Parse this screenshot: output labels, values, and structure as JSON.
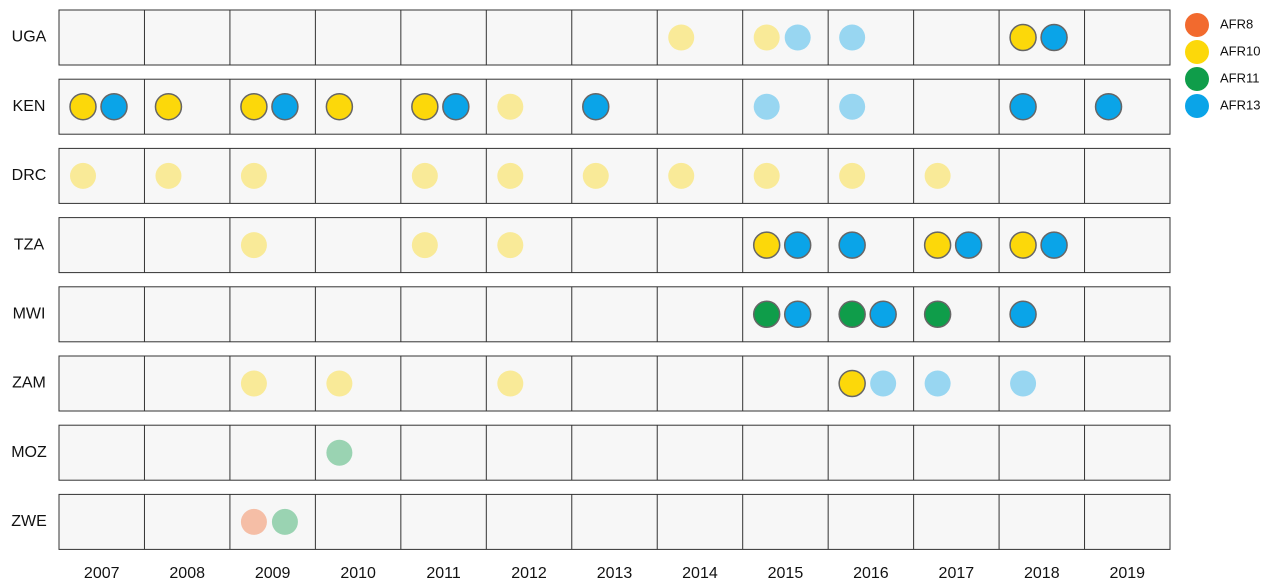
{
  "chart_data": {
    "type": "dot-matrix",
    "xticks": [
      2007,
      2008,
      2009,
      2010,
      2011,
      2012,
      2013,
      2014,
      2015,
      2016,
      2017,
      2018,
      2019
    ],
    "series": [
      {
        "name": "AFR8",
        "color": "#f26a2e"
      },
      {
        "name": "AFR10",
        "color": "#fcd80a"
      },
      {
        "name": "AFR11",
        "color": "#0f9d4a"
      },
      {
        "name": "AFR13",
        "color": "#0aa4e8"
      }
    ],
    "rows": [
      {
        "name": "UGA",
        "points": [
          {
            "x": 2014,
            "series": "AFR10",
            "outlined": false
          },
          {
            "x": 2015,
            "series": "AFR10",
            "outlined": false
          },
          {
            "x": 2015,
            "series": "AFR13",
            "outlined": false
          },
          {
            "x": 2016,
            "series": "AFR13",
            "outlined": false
          },
          {
            "x": 2018,
            "series": "AFR10",
            "outlined": true
          },
          {
            "x": 2018,
            "series": "AFR13",
            "outlined": true
          }
        ]
      },
      {
        "name": "KEN",
        "points": [
          {
            "x": 2007,
            "series": "AFR10",
            "outlined": true
          },
          {
            "x": 2007,
            "series": "AFR13",
            "outlined": true
          },
          {
            "x": 2008,
            "series": "AFR10",
            "outlined": true
          },
          {
            "x": 2009,
            "series": "AFR10",
            "outlined": true
          },
          {
            "x": 2009,
            "series": "AFR13",
            "outlined": true
          },
          {
            "x": 2010,
            "series": "AFR10",
            "outlined": true
          },
          {
            "x": 2011,
            "series": "AFR10",
            "outlined": true
          },
          {
            "x": 2011,
            "series": "AFR13",
            "outlined": true
          },
          {
            "x": 2012,
            "series": "AFR10",
            "outlined": false
          },
          {
            "x": 2013,
            "series": "AFR13",
            "outlined": true
          },
          {
            "x": 2015,
            "series": "AFR13",
            "outlined": false
          },
          {
            "x": 2016,
            "series": "AFR13",
            "outlined": false
          },
          {
            "x": 2018,
            "series": "AFR13",
            "outlined": true
          },
          {
            "x": 2019,
            "series": "AFR13",
            "outlined": true
          }
        ]
      },
      {
        "name": "DRC",
        "points": [
          {
            "x": 2007,
            "series": "AFR10",
            "outlined": false
          },
          {
            "x": 2008,
            "series": "AFR10",
            "outlined": false
          },
          {
            "x": 2009,
            "series": "AFR10",
            "outlined": false
          },
          {
            "x": 2011,
            "series": "AFR10",
            "outlined": false
          },
          {
            "x": 2012,
            "series": "AFR10",
            "outlined": false
          },
          {
            "x": 2013,
            "series": "AFR10",
            "outlined": false
          },
          {
            "x": 2014,
            "series": "AFR10",
            "outlined": false
          },
          {
            "x": 2015,
            "series": "AFR10",
            "outlined": false
          },
          {
            "x": 2016,
            "series": "AFR10",
            "outlined": false
          },
          {
            "x": 2017,
            "series": "AFR10",
            "outlined": false
          }
        ]
      },
      {
        "name": "TZA",
        "points": [
          {
            "x": 2009,
            "series": "AFR10",
            "outlined": false
          },
          {
            "x": 2011,
            "series": "AFR10",
            "outlined": false
          },
          {
            "x": 2012,
            "series": "AFR10",
            "outlined": false
          },
          {
            "x": 2015,
            "series": "AFR10",
            "outlined": true
          },
          {
            "x": 2015,
            "series": "AFR13",
            "outlined": true
          },
          {
            "x": 2016,
            "series": "AFR13",
            "outlined": true
          },
          {
            "x": 2017,
            "series": "AFR10",
            "outlined": true
          },
          {
            "x": 2017,
            "series": "AFR13",
            "outlined": true
          },
          {
            "x": 2018,
            "series": "AFR10",
            "outlined": true
          },
          {
            "x": 2018,
            "series": "AFR13",
            "outlined": true
          }
        ]
      },
      {
        "name": "MWI",
        "points": [
          {
            "x": 2015,
            "series": "AFR11",
            "outlined": true
          },
          {
            "x": 2015,
            "series": "AFR13",
            "outlined": true
          },
          {
            "x": 2016,
            "series": "AFR11",
            "outlined": true
          },
          {
            "x": 2016,
            "series": "AFR13",
            "outlined": true
          },
          {
            "x": 2017,
            "series": "AFR11",
            "outlined": true
          },
          {
            "x": 2018,
            "series": "AFR13",
            "outlined": true
          }
        ]
      },
      {
        "name": "ZAM",
        "points": [
          {
            "x": 2009,
            "series": "AFR10",
            "outlined": false
          },
          {
            "x": 2010,
            "series": "AFR10",
            "outlined": false
          },
          {
            "x": 2012,
            "series": "AFR10",
            "outlined": false
          },
          {
            "x": 2016,
            "series": "AFR10",
            "outlined": true
          },
          {
            "x": 2016,
            "series": "AFR13",
            "outlined": false
          },
          {
            "x": 2017,
            "series": "AFR13",
            "outlined": false
          },
          {
            "x": 2018,
            "series": "AFR13",
            "outlined": false
          }
        ]
      },
      {
        "name": "MOZ",
        "points": [
          {
            "x": 2010,
            "series": "AFR11",
            "outlined": false
          }
        ]
      },
      {
        "name": "ZWE",
        "points": [
          {
            "x": 2009,
            "series": "AFR8",
            "outlined": false
          },
          {
            "x": 2009,
            "series": "AFR11",
            "outlined": false
          }
        ]
      }
    ]
  }
}
